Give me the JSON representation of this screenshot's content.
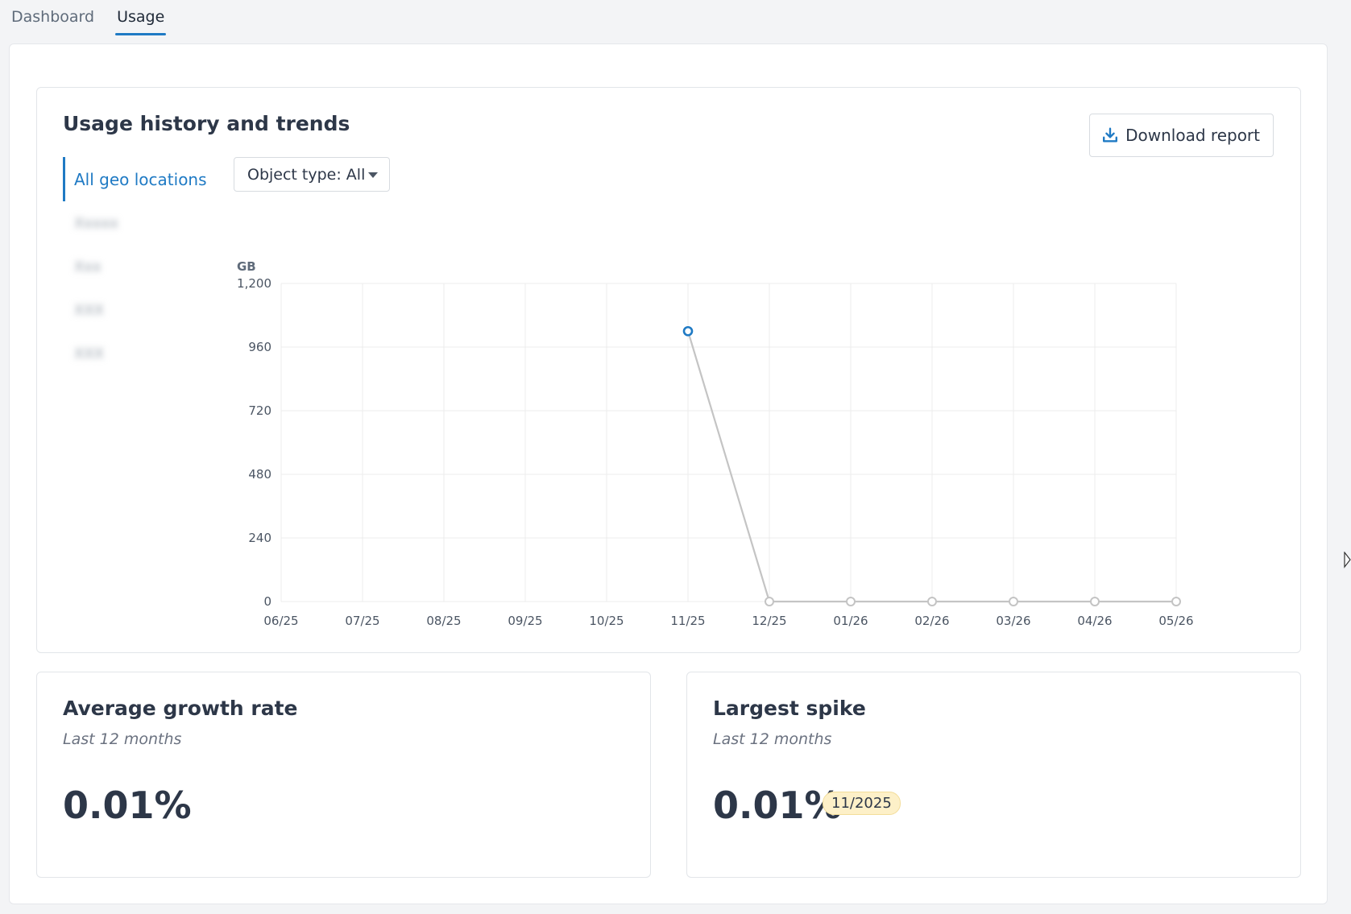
{
  "tabs": [
    {
      "label": "Dashboard",
      "active": false
    },
    {
      "label": "Usage",
      "active": true
    }
  ],
  "usage_card": {
    "title": "Usage history and trends",
    "download_label": "Download report",
    "geo_active_label": "All geo locations",
    "geo_items_blurred": [
      "Xxxxx",
      "Xxx",
      "XXX",
      "XXX"
    ],
    "object_type_label": "Object type: All"
  },
  "chart_data": {
    "type": "line",
    "ylabel": "GB",
    "categories": [
      "06/25",
      "07/25",
      "08/25",
      "09/25",
      "10/25",
      "11/25",
      "12/25",
      "01/26",
      "02/26",
      "03/26",
      "04/26",
      "05/26"
    ],
    "y_ticks": [
      "0",
      "240",
      "480",
      "720",
      "960",
      "1,200"
    ],
    "ylim": [
      0,
      1200
    ],
    "series": [
      {
        "values": [
          null,
          null,
          null,
          null,
          null,
          1020,
          0,
          0,
          0,
          0,
          0,
          0
        ]
      }
    ],
    "highlight_index": 5,
    "grid": true,
    "colors": {
      "line": "#c4c4c4",
      "highlight": "#1f7ac4",
      "grid": "#ececec"
    }
  },
  "stats": [
    {
      "title": "Average growth rate",
      "subtitle": "Last 12 months",
      "value": "0.01%"
    },
    {
      "title": "Largest spike",
      "subtitle": "Last 12 months",
      "value": "0.01%",
      "badge": "11/2025"
    }
  ],
  "colors": {
    "accent": "#1f7ac4",
    "badge_bg": "#fdf0c8"
  }
}
